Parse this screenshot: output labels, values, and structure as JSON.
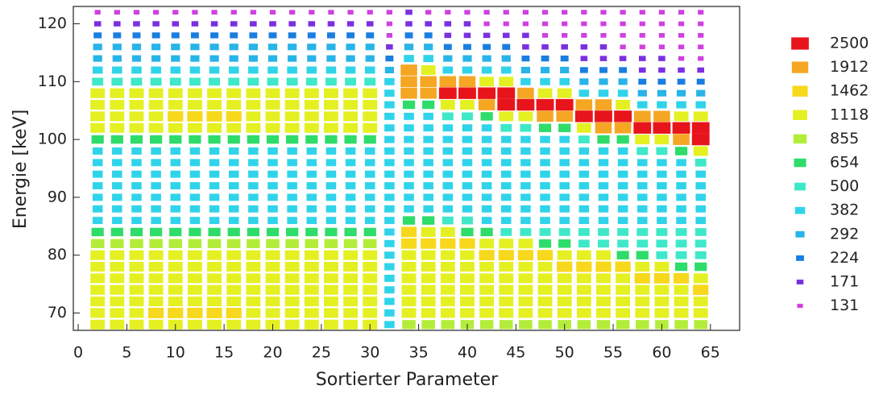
{
  "chart_data": {
    "type": "heatmap",
    "xlabel": "Sortierter Parameter",
    "ylabel": "Energie [keV]",
    "xlim": [
      -0.5,
      68
    ],
    "ylim": [
      67,
      123
    ],
    "xticks": [
      0,
      5,
      10,
      15,
      20,
      25,
      30,
      35,
      40,
      45,
      50,
      55,
      60,
      65
    ],
    "yticks": [
      70,
      80,
      90,
      100,
      110,
      120
    ],
    "levels": [
      2500,
      1912,
      1462,
      1118,
      855,
      654,
      500,
      382,
      292,
      224,
      171,
      131
    ],
    "colors": [
      "#e8141c",
      "#f5a623",
      "#f8d81c",
      "#e4f022",
      "#b4ec3a",
      "#2edc6a",
      "#3ee8c8",
      "#30d4ea",
      "#28b4e8",
      "#1a7ee0",
      "#7a30e0",
      "#d040e0"
    ],
    "x": [
      2,
      4,
      6,
      8,
      10,
      12,
      14,
      16,
      18,
      20,
      22,
      24,
      26,
      28,
      30,
      32,
      34,
      36,
      38,
      40,
      42,
      44,
      46,
      48,
      50,
      52,
      54,
      56,
      58,
      60,
      62,
      64
    ],
    "y": [
      68,
      70,
      72,
      74,
      76,
      78,
      80,
      82,
      84,
      86,
      88,
      90,
      92,
      94,
      96,
      98,
      100,
      102,
      104,
      106,
      108,
      110,
      112,
      114,
      116,
      118,
      120,
      122
    ],
    "z": [
      [
        1118,
        1118,
        1118,
        1118,
        1118,
        1118,
        1118,
        1118,
        1118,
        1118,
        1118,
        1118,
        1118,
        1118,
        1118,
        382,
        855,
        855,
        855,
        855,
        855,
        855,
        855,
        855,
        855,
        855,
        855,
        855,
        855,
        855,
        855,
        855
      ],
      [
        1118,
        1118,
        1118,
        1462,
        1462,
        1462,
        1462,
        1462,
        1118,
        1118,
        1118,
        1118,
        1118,
        1118,
        1118,
        382,
        1118,
        1118,
        1118,
        1118,
        1118,
        1118,
        1118,
        1118,
        1118,
        1118,
        1118,
        1118,
        1118,
        1118,
        1118,
        1118
      ],
      [
        1118,
        1118,
        1118,
        1118,
        1118,
        1118,
        1118,
        1118,
        1118,
        1118,
        1118,
        1118,
        1118,
        1118,
        1118,
        382,
        1118,
        1118,
        1118,
        1118,
        1118,
        1118,
        1118,
        1118,
        1118,
        1118,
        1118,
        1118,
        1118,
        1118,
        1118,
        1118
      ],
      [
        1118,
        1118,
        1118,
        1118,
        1118,
        1118,
        1118,
        1118,
        1118,
        1118,
        1118,
        1118,
        1118,
        1118,
        1118,
        382,
        1118,
        1118,
        1118,
        1118,
        1118,
        1118,
        1118,
        1118,
        1118,
        1118,
        1118,
        1118,
        1118,
        1118,
        1118,
        1462
      ],
      [
        1118,
        1118,
        1118,
        1118,
        1118,
        1118,
        1118,
        1118,
        1118,
        1118,
        1118,
        1118,
        1118,
        1118,
        1118,
        382,
        1118,
        1118,
        1118,
        1118,
        1118,
        1118,
        1118,
        1118,
        1118,
        1118,
        1118,
        1118,
        1462,
        1462,
        1462,
        1118
      ],
      [
        1118,
        1118,
        1118,
        1118,
        1118,
        1118,
        1118,
        1118,
        1118,
        1118,
        1118,
        1118,
        1118,
        1118,
        1118,
        382,
        1118,
        1118,
        1118,
        1118,
        1118,
        1118,
        1118,
        1118,
        1462,
        1462,
        1462,
        1462,
        1118,
        1118,
        654,
        654
      ],
      [
        1118,
        1118,
        1118,
        1118,
        1118,
        1118,
        1118,
        1118,
        1118,
        1118,
        1118,
        1118,
        1118,
        1118,
        1118,
        382,
        1118,
        1118,
        1118,
        1118,
        1462,
        1462,
        1462,
        1462,
        1118,
        1118,
        1118,
        654,
        654,
        500,
        500,
        500
      ],
      [
        855,
        855,
        855,
        855,
        855,
        855,
        855,
        855,
        855,
        855,
        855,
        855,
        855,
        855,
        855,
        382,
        1462,
        1462,
        1462,
        1462,
        1118,
        1118,
        1118,
        654,
        654,
        500,
        500,
        500,
        500,
        500,
        500,
        500
      ],
      [
        654,
        654,
        654,
        654,
        654,
        654,
        654,
        654,
        654,
        654,
        654,
        654,
        654,
        654,
        654,
        382,
        1462,
        1118,
        1118,
        654,
        654,
        500,
        500,
        500,
        500,
        500,
        500,
        500,
        500,
        500,
        500,
        500
      ],
      [
        382,
        382,
        382,
        382,
        382,
        382,
        382,
        382,
        382,
        382,
        382,
        382,
        382,
        382,
        382,
        382,
        654,
        654,
        500,
        500,
        382,
        382,
        382,
        382,
        382,
        382,
        382,
        382,
        382,
        382,
        382,
        382
      ],
      [
        382,
        382,
        382,
        382,
        382,
        382,
        382,
        382,
        382,
        382,
        382,
        382,
        382,
        382,
        382,
        382,
        382,
        382,
        382,
        382,
        382,
        382,
        382,
        382,
        382,
        382,
        382,
        382,
        382,
        382,
        382,
        382
      ],
      [
        382,
        382,
        382,
        382,
        382,
        382,
        382,
        382,
        382,
        382,
        382,
        382,
        382,
        382,
        382,
        382,
        382,
        382,
        382,
        382,
        382,
        382,
        382,
        382,
        382,
        382,
        382,
        382,
        382,
        382,
        382,
        382
      ],
      [
        382,
        382,
        382,
        382,
        382,
        382,
        382,
        382,
        382,
        382,
        382,
        382,
        382,
        382,
        382,
        382,
        382,
        382,
        382,
        382,
        382,
        382,
        382,
        382,
        382,
        382,
        382,
        382,
        382,
        382,
        382,
        382
      ],
      [
        382,
        382,
        382,
        382,
        382,
        382,
        382,
        382,
        382,
        382,
        382,
        382,
        382,
        382,
        382,
        382,
        382,
        382,
        382,
        382,
        382,
        382,
        382,
        382,
        382,
        382,
        382,
        382,
        382,
        382,
        382,
        382
      ],
      [
        382,
        382,
        382,
        382,
        382,
        382,
        382,
        382,
        382,
        382,
        382,
        382,
        382,
        382,
        382,
        382,
        382,
        382,
        382,
        382,
        382,
        382,
        382,
        382,
        382,
        382,
        382,
        382,
        382,
        382,
        382,
        500
      ],
      [
        382,
        382,
        382,
        382,
        382,
        382,
        382,
        382,
        382,
        382,
        382,
        382,
        382,
        382,
        382,
        382,
        382,
        382,
        382,
        382,
        382,
        382,
        382,
        382,
        382,
        382,
        382,
        382,
        500,
        500,
        654,
        1118
      ],
      [
        654,
        654,
        654,
        654,
        654,
        654,
        654,
        654,
        654,
        654,
        654,
        654,
        654,
        654,
        654,
        382,
        382,
        382,
        382,
        382,
        382,
        382,
        382,
        382,
        382,
        500,
        654,
        654,
        1118,
        1118,
        1912,
        2500
      ],
      [
        1118,
        1118,
        1118,
        1118,
        1118,
        1118,
        1118,
        1118,
        1118,
        1118,
        1118,
        1118,
        1118,
        1118,
        1118,
        382,
        382,
        382,
        382,
        382,
        382,
        500,
        500,
        654,
        654,
        1118,
        1912,
        1912,
        2500,
        2500,
        2500,
        2500
      ],
      [
        1118,
        1118,
        1118,
        1118,
        1462,
        1462,
        1462,
        1462,
        1118,
        1118,
        1118,
        1118,
        1118,
        1118,
        1118,
        382,
        382,
        382,
        500,
        500,
        654,
        1118,
        1118,
        1912,
        1912,
        2500,
        2500,
        2500,
        1912,
        1912,
        1118,
        1118
      ],
      [
        1118,
        1118,
        1118,
        1118,
        1118,
        1118,
        1118,
        1118,
        1118,
        1118,
        1118,
        1118,
        1118,
        1118,
        1118,
        382,
        654,
        654,
        1118,
        1118,
        1912,
        2500,
        2500,
        2500,
        2500,
        1912,
        1912,
        1118,
        382,
        382,
        382,
        382
      ],
      [
        1118,
        1118,
        1118,
        1118,
        1118,
        1118,
        1118,
        1118,
        1118,
        1118,
        1118,
        1118,
        1118,
        1118,
        1118,
        382,
        1912,
        1912,
        2500,
        2500,
        2500,
        2500,
        1912,
        1118,
        1118,
        382,
        382,
        382,
        292,
        292,
        292,
        292
      ],
      [
        500,
        500,
        500,
        500,
        500,
        500,
        500,
        500,
        500,
        500,
        500,
        500,
        500,
        500,
        500,
        382,
        1912,
        1912,
        1912,
        1912,
        1118,
        1118,
        382,
        382,
        382,
        292,
        292,
        292,
        224,
        224,
        224,
        224
      ],
      [
        382,
        382,
        382,
        382,
        382,
        382,
        382,
        382,
        382,
        382,
        382,
        382,
        382,
        382,
        382,
        292,
        1912,
        1118,
        382,
        382,
        382,
        382,
        292,
        292,
        292,
        224,
        224,
        224,
        171,
        171,
        171,
        171
      ],
      [
        292,
        292,
        292,
        292,
        292,
        292,
        292,
        292,
        292,
        292,
        292,
        292,
        292,
        292,
        292,
        224,
        382,
        382,
        292,
        292,
        292,
        292,
        224,
        224,
        224,
        171,
        171,
        171,
        171,
        171,
        131,
        131
      ],
      [
        292,
        292,
        292,
        292,
        292,
        292,
        292,
        292,
        292,
        292,
        292,
        292,
        292,
        292,
        292,
        171,
        292,
        292,
        224,
        224,
        224,
        224,
        171,
        171,
        171,
        171,
        171,
        131,
        131,
        131,
        131,
        131
      ],
      [
        224,
        224,
        224,
        224,
        224,
        224,
        224,
        224,
        224,
        224,
        224,
        224,
        224,
        224,
        224,
        131,
        224,
        224,
        171,
        171,
        171,
        171,
        171,
        131,
        131,
        131,
        131,
        131,
        131,
        131,
        131,
        131
      ],
      [
        171,
        171,
        171,
        171,
        171,
        171,
        171,
        171,
        171,
        171,
        171,
        171,
        171,
        171,
        171,
        131,
        171,
        171,
        171,
        171,
        131,
        131,
        131,
        131,
        131,
        131,
        131,
        131,
        131,
        131,
        131,
        131
      ],
      [
        131,
        131,
        131,
        131,
        131,
        131,
        131,
        131,
        131,
        131,
        131,
        131,
        131,
        131,
        131,
        131,
        171,
        131,
        131,
        131,
        131,
        131,
        131,
        131,
        131,
        131,
        131,
        131,
        131,
        131,
        131,
        131
      ]
    ]
  }
}
